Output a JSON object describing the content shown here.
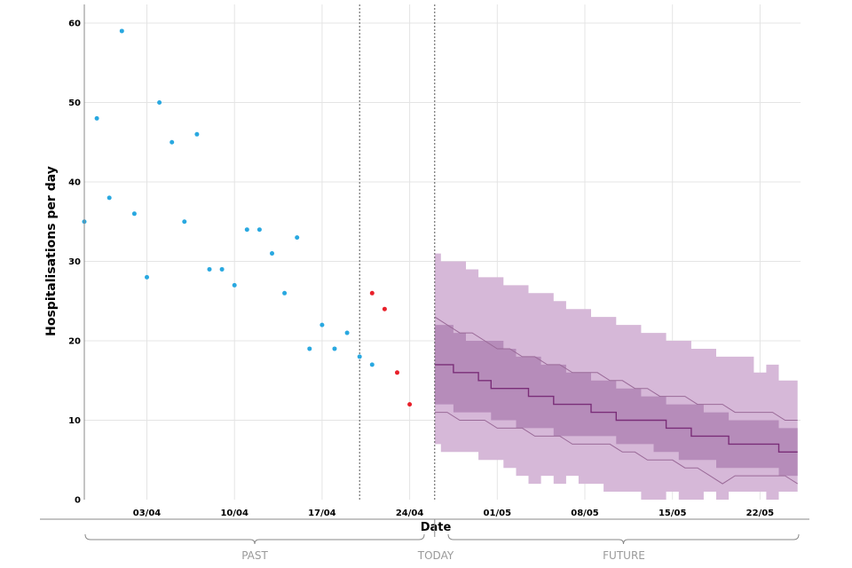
{
  "chart_data": {
    "type": "scatter",
    "title": "",
    "xlabel": "Date",
    "ylabel": "Hospitalisations per day",
    "ylim": [
      0,
      62
    ],
    "x_domain_days": [
      0,
      57
    ],
    "x_tick_days": [
      5,
      12,
      19,
      26,
      33,
      40,
      47,
      54
    ],
    "x_tick_labels": [
      "03/04",
      "10/04",
      "17/04",
      "24/04",
      "01/05",
      "08/05",
      "15/05",
      "22/05"
    ],
    "y_ticks": [
      0,
      10,
      20,
      30,
      40,
      50,
      60
    ],
    "colors": {
      "observed": "#29a8e0",
      "recent": "#e8202a",
      "band_outer": "#d6b8d8",
      "band_inner": "#b68cba",
      "median": "#7a2e78",
      "quantile_line": "#9a6a98",
      "vline": "#555555",
      "axis": "#888888",
      "phase_text": "#9a9a9a"
    },
    "observed": {
      "name": "Observed",
      "x": [
        0,
        1,
        2,
        3,
        4,
        5,
        6,
        7,
        8,
        9,
        10,
        11,
        12,
        13,
        14,
        15,
        16,
        17,
        18,
        19,
        20,
        21,
        22,
        23
      ],
      "y": [
        35,
        48,
        38,
        59,
        36,
        28,
        50,
        45,
        35,
        46,
        29,
        29,
        27,
        34,
        34,
        31,
        26,
        33,
        19,
        22,
        19,
        21,
        18,
        17
      ]
    },
    "recent": {
      "name": "Recent (incomplete)",
      "x": [
        23,
        24,
        25,
        26
      ],
      "y": [
        26,
        24,
        16,
        12
      ]
    },
    "nowcast_line_day": 22,
    "today_day": 28,
    "forecast": {
      "x": [
        28,
        29,
        30,
        31,
        32,
        33,
        34,
        35,
        36,
        37,
        38,
        39,
        40,
        41,
        42,
        43,
        44,
        45,
        46,
        47,
        48,
        49,
        50,
        51,
        52,
        53,
        54,
        55,
        56,
        57
      ],
      "outer_upper": [
        31,
        30,
        30,
        29,
        28,
        28,
        27,
        27,
        26,
        26,
        25,
        24,
        24,
        23,
        23,
        22,
        22,
        21,
        21,
        20,
        20,
        19,
        19,
        18,
        18,
        18,
        16,
        17,
        15,
        15
      ],
      "outer_lower": [
        7,
        6,
        6,
        6,
        5,
        5,
        4,
        3,
        2,
        3,
        2,
        3,
        2,
        2,
        1,
        1,
        1,
        0,
        0,
        1,
        0,
        0,
        1,
        0,
        1,
        1,
        1,
        0,
        1,
        1
      ],
      "inner_upper": [
        22,
        22,
        21,
        20,
        20,
        20,
        19,
        18,
        18,
        17,
        17,
        16,
        16,
        15,
        15,
        14,
        14,
        13,
        13,
        12,
        12,
        12,
        11,
        11,
        10,
        10,
        10,
        10,
        9,
        9
      ],
      "inner_lower": [
        12,
        12,
        11,
        11,
        11,
        10,
        10,
        9,
        9,
        9,
        8,
        8,
        8,
        8,
        8,
        7,
        7,
        7,
        6,
        6,
        5,
        5,
        5,
        4,
        4,
        4,
        4,
        4,
        3,
        3
      ],
      "median": [
        17,
        17,
        16,
        16,
        15,
        14,
        14,
        14,
        13,
        13,
        12,
        12,
        12,
        11,
        11,
        10,
        10,
        10,
        10,
        9,
        9,
        8,
        8,
        8,
        7,
        7,
        7,
        7,
        6,
        6
      ],
      "q_upper": [
        23,
        22,
        21,
        21,
        20,
        19,
        19,
        18,
        18,
        17,
        17,
        16,
        16,
        16,
        15,
        15,
        14,
        14,
        13,
        13,
        13,
        12,
        12,
        12,
        11,
        11,
        11,
        11,
        10,
        10
      ],
      "q_lower": [
        11,
        11,
        10,
        10,
        10,
        9,
        9,
        9,
        8,
        8,
        8,
        7,
        7,
        7,
        7,
        6,
        6,
        5,
        5,
        5,
        4,
        4,
        3,
        2,
        3,
        3,
        3,
        3,
        3,
        2
      ]
    },
    "phases": {
      "past": "PAST",
      "today": "TODAY",
      "future": "FUTURE"
    }
  }
}
